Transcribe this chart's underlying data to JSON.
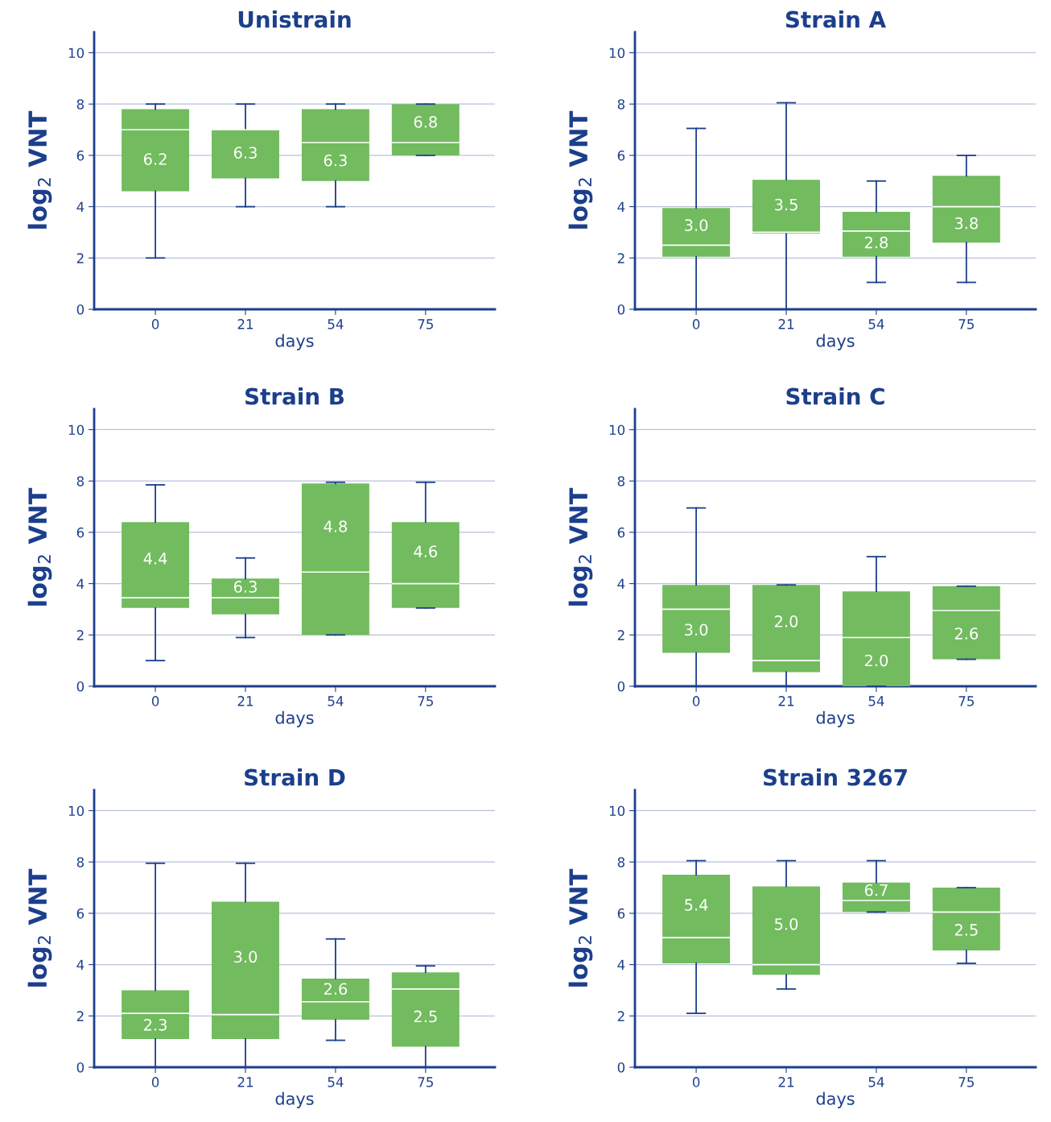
{
  "chart_data": [
    {
      "type": "box",
      "title": "Unistrain",
      "xlabel": "days",
      "ylabel": "log$_{2}$ VNT",
      "categories": [
        "0",
        "21",
        "54",
        "75"
      ],
      "color": "#72bb5f",
      "ylim": [
        0,
        10.8
      ],
      "yticks": [
        0,
        2,
        4,
        6,
        8,
        10
      ],
      "grid": "y",
      "boxes": [
        {
          "low": 2.0,
          "q1": 4.6,
          "median": 7.0,
          "q3": 7.8,
          "high": 8.0
        },
        {
          "low": 4.0,
          "q1": 5.1,
          "median": 7.0,
          "q3": 7.0,
          "high": 8.0
        },
        {
          "low": 4.0,
          "q1": 5.0,
          "median": 6.5,
          "q3": 7.8,
          "high": 8.0
        },
        {
          "low": 6.0,
          "q1": 6.0,
          "median": 6.5,
          "q3": 8.0,
          "high": 8.0
        }
      ],
      "value_labels": [
        "6.2",
        "6.3",
        "6.3",
        "6.8"
      ]
    },
    {
      "type": "box",
      "title": "Strain A",
      "xlabel": "days",
      "ylabel": "log$_{2}$ VNT",
      "categories": [
        "0",
        "21",
        "54",
        "75"
      ],
      "color": "#72bb5f",
      "ylim": [
        0,
        10.8
      ],
      "yticks": [
        0,
        2,
        4,
        6,
        8,
        10
      ],
      "grid": "y",
      "boxes": [
        {
          "low": 0,
          "q1": 2.05,
          "median": 2.5,
          "q3": 3.95,
          "high": 7.05
        },
        {
          "low": 0,
          "q1": 2.95,
          "median": 3.0,
          "q3": 5.05,
          "high": 8.05
        },
        {
          "low": 1.05,
          "q1": 2.05,
          "median": 3.05,
          "q3": 3.8,
          "high": 5.0
        },
        {
          "low": 1.05,
          "q1": 2.6,
          "median": 4.0,
          "q3": 5.2,
          "high": 6.0
        }
      ],
      "value_labels": [
        "3.0",
        "3.5",
        "2.8",
        "3.8"
      ]
    },
    {
      "type": "box",
      "title": "Strain B",
      "xlabel": "days",
      "ylabel": "log$_{2}$ VNT",
      "categories": [
        "0",
        "21",
        "54",
        "75"
      ],
      "color": "#72bb5f",
      "ylim": [
        0,
        10.8
      ],
      "yticks": [
        0,
        2,
        4,
        6,
        8,
        10
      ],
      "grid": "y",
      "boxes": [
        {
          "low": 1.0,
          "q1": 3.05,
          "median": 3.45,
          "q3": 6.4,
          "high": 7.85
        },
        {
          "low": 1.9,
          "q1": 2.8,
          "median": 3.45,
          "q3": 4.2,
          "high": 5.0
        },
        {
          "low": 2.0,
          "q1": 2.0,
          "median": 4.45,
          "q3": 7.9,
          "high": 7.95
        },
        {
          "low": 3.05,
          "q1": 3.05,
          "median": 4.0,
          "q3": 6.4,
          "high": 7.95
        }
      ],
      "value_labels": [
        "4.4",
        "6.3",
        "4.8",
        "4.6"
      ]
    },
    {
      "type": "box",
      "title": "Strain C",
      "xlabel": "days",
      "ylabel": "log$_{2}$ VNT",
      "categories": [
        "0",
        "21",
        "54",
        "75"
      ],
      "color": "#72bb5f",
      "ylim": [
        0,
        10.8
      ],
      "yticks": [
        0,
        2,
        4,
        6,
        8,
        10
      ],
      "grid": "y",
      "boxes": [
        {
          "low": 0,
          "q1": 1.3,
          "median": 3.0,
          "q3": 3.95,
          "high": 6.95
        },
        {
          "low": 0,
          "q1": 0.55,
          "median": 1.0,
          "q3": 3.95,
          "high": 3.95
        },
        {
          "low": 0,
          "q1": 0,
          "median": 1.9,
          "q3": 3.7,
          "high": 5.05
        },
        {
          "low": 1.05,
          "q1": 1.05,
          "median": 2.95,
          "q3": 3.9,
          "high": 3.9
        }
      ],
      "value_labels": [
        "3.0",
        "2.0",
        "2.0",
        "2.6"
      ]
    },
    {
      "type": "box",
      "title": "Strain D",
      "xlabel": "days",
      "ylabel": "log$_{2}$ VNT",
      "categories": [
        "0",
        "21",
        "54",
        "75"
      ],
      "color": "#72bb5f",
      "ylim": [
        0,
        10.8
      ],
      "yticks": [
        0,
        2,
        4,
        6,
        8,
        10
      ],
      "grid": "y",
      "boxes": [
        {
          "low": 0,
          "q1": 1.1,
          "median": 2.1,
          "q3": 3.0,
          "high": 7.95
        },
        {
          "low": 0,
          "q1": 1.1,
          "median": 2.05,
          "q3": 6.45,
          "high": 7.95
        },
        {
          "low": 1.05,
          "q1": 1.85,
          "median": 2.55,
          "q3": 3.45,
          "high": 5.0
        },
        {
          "low": 0,
          "q1": 0.8,
          "median": 3.05,
          "q3": 3.7,
          "high": 3.95
        }
      ],
      "value_labels": [
        "2.3",
        "3.0",
        "2.6",
        "2.5"
      ]
    },
    {
      "type": "box",
      "title": "Strain 3267",
      "xlabel": "days",
      "ylabel": "log$_{2}$ VNT",
      "categories": [
        "0",
        "21",
        "54",
        "75"
      ],
      "color": "#72bb5f",
      "ylim": [
        0,
        10.8
      ],
      "yticks": [
        0,
        2,
        4,
        6,
        8,
        10
      ],
      "grid": "y",
      "boxes": [
        {
          "low": 2.1,
          "q1": 4.05,
          "median": 5.05,
          "q3": 7.5,
          "high": 8.05
        },
        {
          "low": 3.05,
          "q1": 3.6,
          "median": 4.0,
          "q3": 7.05,
          "high": 8.05
        },
        {
          "low": 6.05,
          "q1": 6.05,
          "median": 6.5,
          "q3": 7.2,
          "high": 8.05
        },
        {
          "low": 4.05,
          "q1": 4.55,
          "median": 6.05,
          "q3": 7.0,
          "high": 7.0
        }
      ],
      "value_labels": [
        "5.4",
        "5.0",
        "6.7",
        "2.5"
      ]
    }
  ]
}
